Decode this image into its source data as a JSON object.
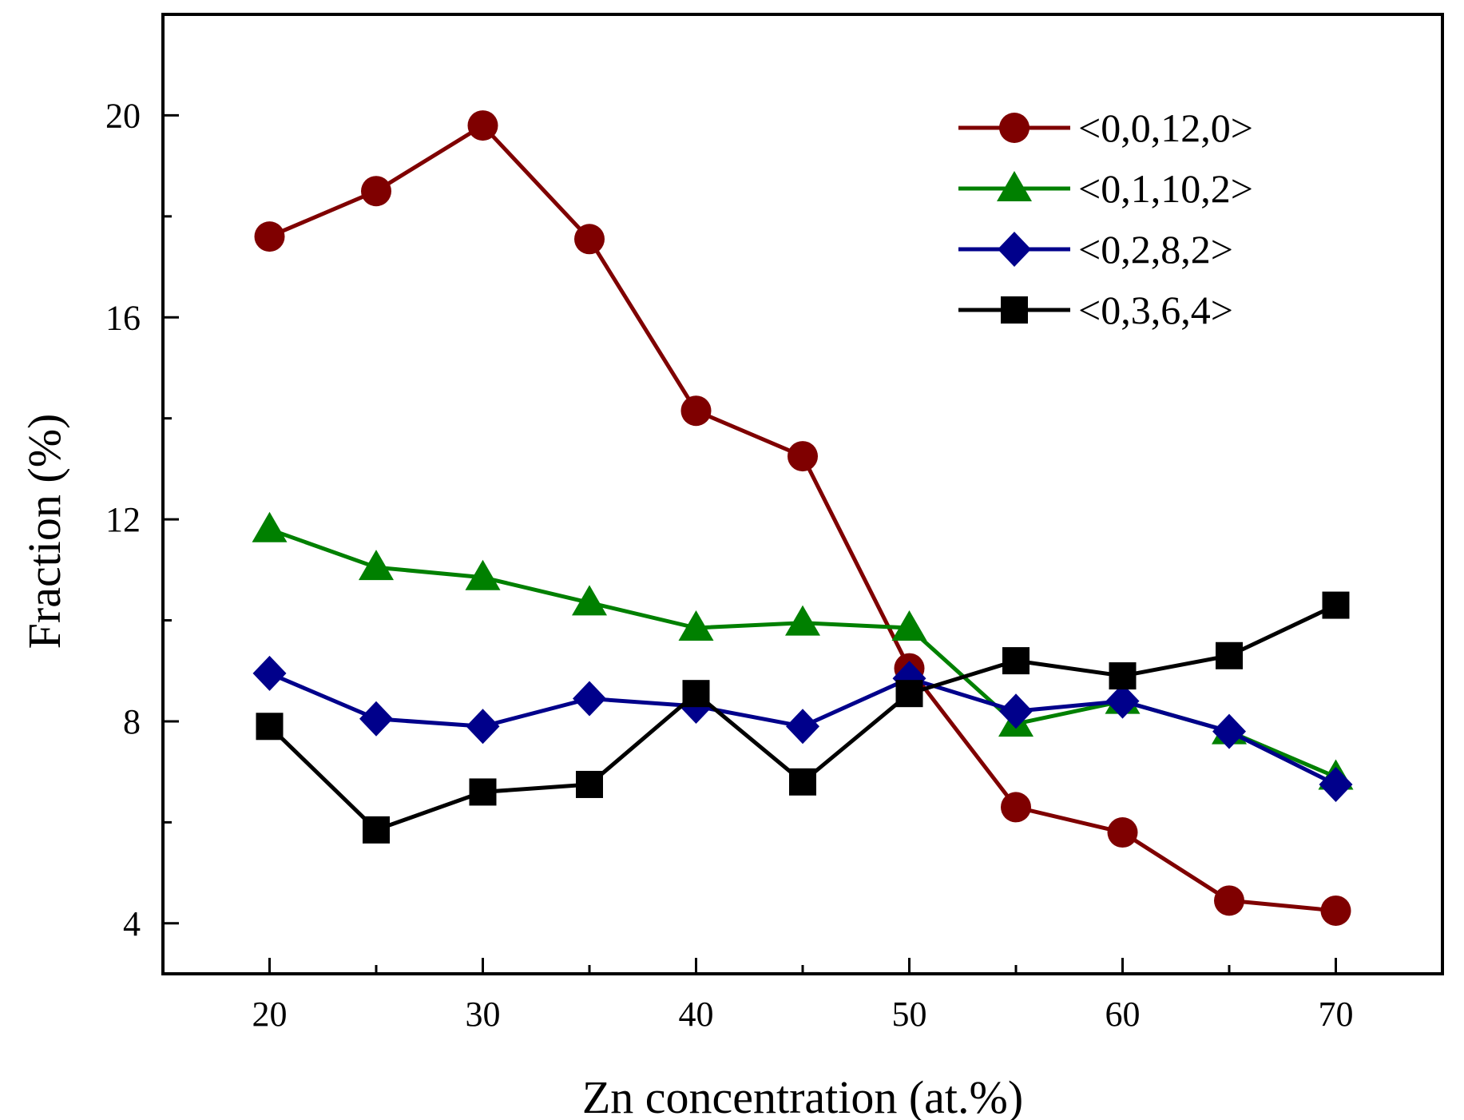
{
  "chart_data": {
    "type": "line",
    "title": "",
    "xlabel": "Zn concentration (at.%)",
    "ylabel": "Fraction (%)",
    "xlim": [
      15,
      75
    ],
    "ylim": [
      3,
      22
    ],
    "x": [
      20,
      25,
      30,
      35,
      40,
      45,
      50,
      55,
      60,
      65,
      70
    ],
    "xticks": [
      20,
      30,
      40,
      50,
      60,
      70
    ],
    "xticks_minor": [
      25,
      35,
      45,
      55,
      65
    ],
    "yticks": [
      4,
      8,
      12,
      16,
      20
    ],
    "yticks_minor": [
      6,
      10,
      14,
      18
    ],
    "grid": false,
    "legend_position": "top-right",
    "series": [
      {
        "name": "<0,0,12,0>",
        "color": "#7f0000",
        "marker": "circle",
        "values": [
          17.6,
          18.5,
          19.8,
          17.55,
          14.15,
          13.25,
          9.05,
          6.3,
          5.8,
          4.45,
          4.25
        ]
      },
      {
        "name": "<0,1,10,2>",
        "color": "#008000",
        "marker": "triangle",
        "values": [
          11.8,
          11.05,
          10.85,
          10.35,
          9.85,
          9.95,
          9.85,
          7.95,
          8.4,
          7.8,
          6.9
        ]
      },
      {
        "name": "<0,2,8,2>",
        "color": "#00008b",
        "marker": "diamond",
        "values": [
          8.95,
          8.05,
          7.9,
          8.45,
          8.3,
          7.9,
          8.85,
          8.2,
          8.4,
          7.8,
          6.75
        ]
      },
      {
        "name": "<0,3,6,4>",
        "color": "#000000",
        "marker": "square",
        "values": [
          7.9,
          5.85,
          6.6,
          6.75,
          8.55,
          6.8,
          8.55,
          9.2,
          8.9,
          9.3,
          10.3
        ]
      }
    ]
  }
}
